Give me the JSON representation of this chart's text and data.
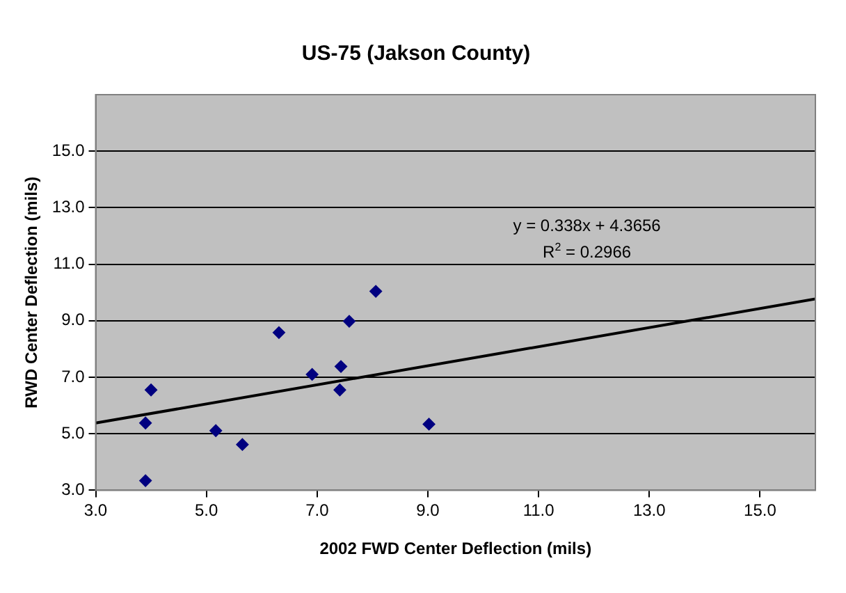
{
  "chart_data": {
    "type": "scatter",
    "title": "US-75 (Jakson County)",
    "xlabel": "2002 FWD Center Deflection (mils)",
    "ylabel": "RWD Center Deflection (mils)",
    "series": [
      {
        "color": "#000080",
        "marker": "diamond",
        "x": [
          3.9,
          3.9,
          4.0,
          5.17,
          5.65,
          6.31,
          6.91,
          7.41,
          7.43,
          7.58,
          8.06,
          9.02
        ],
        "values": [
          3.34,
          5.38,
          6.55,
          5.11,
          4.62,
          8.58,
          7.1,
          6.55,
          7.38,
          8.98,
          10.04,
          5.34
        ]
      },
      {
        "type": "line",
        "color": "#000000",
        "marker": "none",
        "x": [
          3,
          16
        ],
        "values": [
          5.38,
          9.77
        ]
      }
    ],
    "xlim": [
      3,
      16
    ],
    "xticks": [
      {
        "value": 3,
        "label": "3.0"
      },
      {
        "value": 5,
        "label": "5.0"
      },
      {
        "value": 7,
        "label": "7.0"
      },
      {
        "value": 9,
        "label": "9.0"
      },
      {
        "value": 11,
        "label": "11.0"
      },
      {
        "value": 13,
        "label": "13.0"
      },
      {
        "value": 15,
        "label": "15.0"
      }
    ],
    "ylim": [
      3,
      17
    ],
    "yticks": [
      {
        "value": 3,
        "label": "3.0"
      },
      {
        "value": 5,
        "label": "5.0"
      },
      {
        "value": 7,
        "label": "7.0"
      },
      {
        "value": 9,
        "label": "9.0"
      },
      {
        "value": 11,
        "label": "11.0"
      },
      {
        "value": 13,
        "label": "13.0"
      },
      {
        "value": 15,
        "label": "15.0"
      }
    ],
    "annotations": [
      "y = 0.338x + 4.3656",
      "R$^{2}$ = 0.2966"
    ],
    "grid": "y",
    "legend": false
  }
}
